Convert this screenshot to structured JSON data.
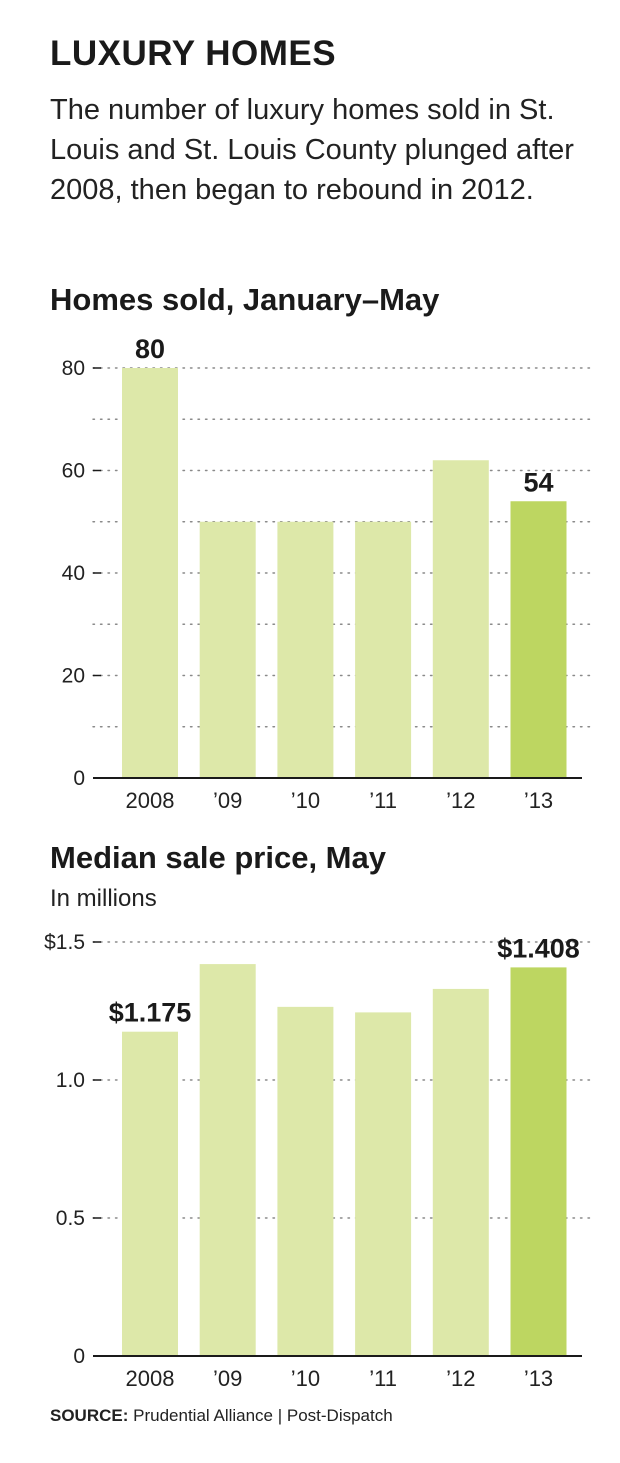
{
  "title": "LUXURY HOMES",
  "intro": "The number of luxury homes sold in St. Louis and St. Louis County plunged after 2008, then began to rebound in 2012.",
  "colors": {
    "bar": "#dde8a9",
    "highlight": "#bdd661",
    "grid": "#8a8a8a",
    "axis": "#1a1a1a"
  },
  "chart_data": [
    {
      "type": "bar",
      "title": "Homes sold, January–May",
      "subtitle": "",
      "categories": [
        "2008",
        "’09",
        "’10",
        "’11",
        "’12",
        "’13"
      ],
      "values": [
        80,
        50,
        50,
        50,
        62,
        54
      ],
      "highlight_index": 5,
      "data_labels": [
        {
          "index": 0,
          "text": "80"
        },
        {
          "index": 5,
          "text": "54"
        }
      ],
      "yticks": [
        {
          "value": 0,
          "label": "0"
        },
        {
          "value": 20,
          "label": "20"
        },
        {
          "value": 40,
          "label": "40"
        },
        {
          "value": 60,
          "label": "60"
        },
        {
          "value": 80,
          "label": "80"
        }
      ],
      "gridlines": [
        10,
        20,
        30,
        40,
        50,
        60,
        70,
        80
      ],
      "ylim": [
        0,
        80
      ],
      "grid": true
    },
    {
      "type": "bar",
      "title": "Median sale price, May",
      "subtitle": "In millions",
      "categories": [
        "2008",
        "’09",
        "’10",
        "’11",
        "’12",
        "’13"
      ],
      "values": [
        1.175,
        1.42,
        1.265,
        1.245,
        1.33,
        1.408
      ],
      "highlight_index": 5,
      "data_labels": [
        {
          "index": 0,
          "text": "$1.175"
        },
        {
          "index": 5,
          "text": "$1.408"
        }
      ],
      "yticks": [
        {
          "value": 0,
          "label": "0"
        },
        {
          "value": 0.5,
          "label": "0.5"
        },
        {
          "value": 1.0,
          "label": "1.0"
        },
        {
          "value": 1.5,
          "label": "$1.5"
        }
      ],
      "gridlines": [
        0.5,
        1.0,
        1.5
      ],
      "ylim": [
        0,
        1.5
      ],
      "grid": true
    }
  ],
  "source": {
    "label": "SOURCE:",
    "text": "Prudential Alliance | Post-Dispatch"
  }
}
